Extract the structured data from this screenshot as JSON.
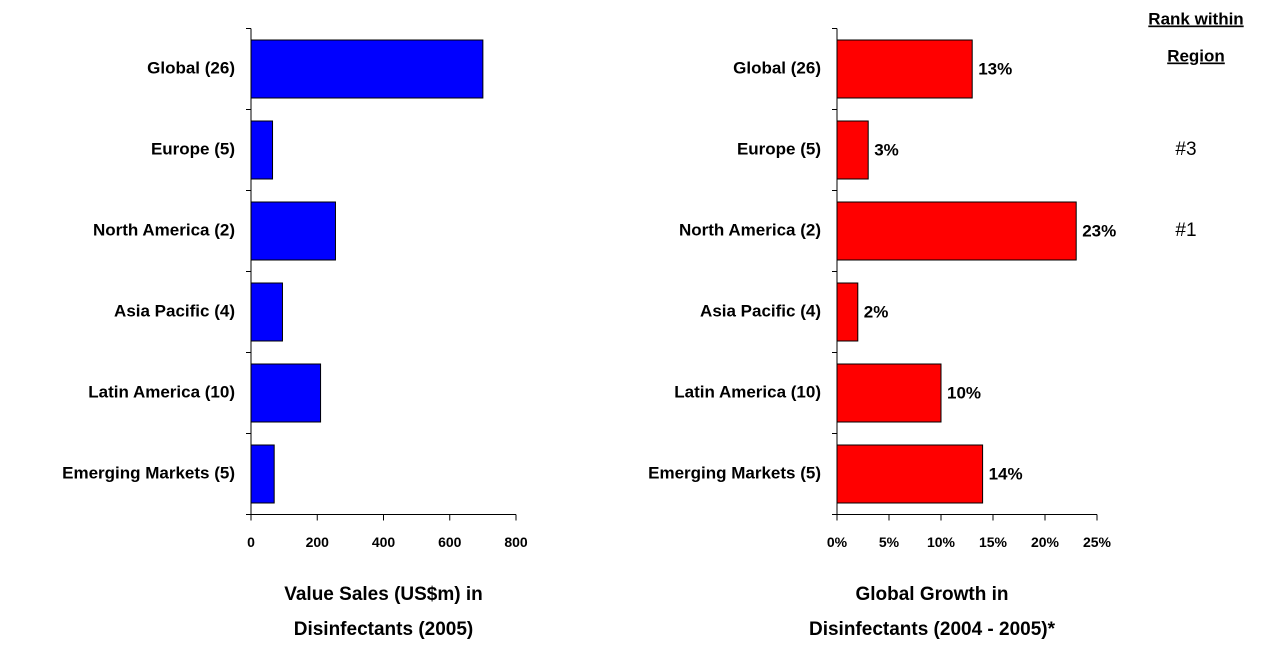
{
  "chart_data": [
    {
      "type": "bar",
      "orientation": "horizontal",
      "xlabel": [
        "Value Sales (US$m) in",
        "Disinfectants (2005)"
      ],
      "categories": [
        "Global (26)",
        "Europe (5)",
        "North America (2)",
        "Asia Pacific (4)",
        "Latin America (10)",
        "Emerging Markets (5)"
      ],
      "values": [
        700,
        65,
        255,
        95,
        210,
        70
      ],
      "color": "#0000ff",
      "xlim": [
        0,
        800
      ],
      "xticks": [
        0,
        200,
        400,
        600,
        800
      ]
    },
    {
      "type": "bar",
      "orientation": "horizontal",
      "xlabel": [
        "Global Growth in",
        "Disinfectants (2004 - 2005)*"
      ],
      "categories": [
        "Global (26)",
        "Europe (5)",
        "North America (2)",
        "Asia Pacific (4)",
        "Latin America (10)",
        "Emerging Markets (5)"
      ],
      "values": [
        13,
        3,
        23,
        2,
        10,
        14
      ],
      "value_labels": [
        "13%",
        "3%",
        "23%",
        "2%",
        "10%",
        "14%"
      ],
      "color": "#ff0000",
      "xlim": [
        0,
        25
      ],
      "xticks": [
        {
          "value": 0,
          "label": "0%"
        },
        {
          "value": 5,
          "label": "5%"
        },
        {
          "value": 10,
          "label": "10%"
        },
        {
          "value": 15,
          "label": "15%"
        },
        {
          "value": 20,
          "label": "20%"
        },
        {
          "value": 25,
          "label": "25%"
        }
      ]
    }
  ],
  "rank": {
    "title": [
      "Rank within",
      "Region"
    ],
    "values": [
      null,
      "#3",
      "#1",
      null,
      null,
      null
    ]
  }
}
